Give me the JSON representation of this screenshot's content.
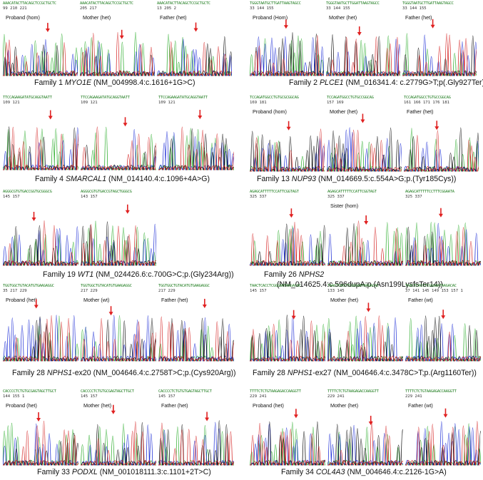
{
  "families": [
    {
      "caption_prefix": "Family 1 ",
      "gene": "MYO1E",
      "caption_suffix": " (NM_004998.4:c.1616+1G>C)",
      "caption_line2": "",
      "panels": [
        {
          "label": "Proband (hom)",
          "seq": "AAACATACTTACAGCTCCGCTGCTC",
          "positions": "99      210       221"
        },
        {
          "label": "Mother (het)",
          "seq": "AAACATACTTACAGCTCCGCTGCTC",
          "positions": "205      217"
        },
        {
          "label": "Father (het)",
          "seq": "AAACATACTTACAGCTCCGCTGCTC",
          "positions": "13       205       2"
        }
      ]
    },
    {
      "caption_prefix": "Family 2 ",
      "gene": "PLCE1",
      "caption_suffix": " (NM_016341.4: c.2779G>T;p(.Gly927Ter))",
      "caption_line2": "",
      "panels": [
        {
          "label": "Proband (Hom)",
          "seq": "TGGGTAATGCTTGATTAAGTAGCC",
          "positions": "33    144       155"
        },
        {
          "label": "Mother (het)",
          "seq": "TGGGTAATGCTTGGATTAAGTAGCC",
          "positions": "33      144       155"
        },
        {
          "label": "Father (het)",
          "seq": "TGGGTAATGCTTGATTAAGTAGCC",
          "positions": "33       144       155"
        }
      ]
    },
    {
      "caption_prefix": "Family 4 ",
      "gene": "SMARCAL1",
      "caption_suffix": " (NM_014140.4:c.1096+4A>G)",
      "caption_line2": "",
      "panels": [
        {
          "label": "",
          "seq": "TTCCAGAAGATATGCAGGTAATT",
          "positions": "109       121"
        },
        {
          "label": "",
          "seq": "TTCCAGAAGATATGCAGGTAATT",
          "positions": "109       121"
        },
        {
          "label": "",
          "seq": "TTCCAGAAGATATGCAGGTAATT",
          "positions": "109       121"
        }
      ]
    },
    {
      "caption_prefix": "Family 13 ",
      "gene": "NUP93",
      "caption_suffix": " (NM_014669.5:c.554A>G;p.(Tyr185Cys))",
      "caption_line2": "",
      "panels": [
        {
          "label": "Proband (hom)",
          "seq": "TCCAGATGGCCTGTGCGCGGCAG",
          "positions": "169         181"
        },
        {
          "label": "Mother (het)",
          "seq": "TCCAGATGGCCTGTGCCGGCAG",
          "positions": "157       169"
        },
        {
          "label": "Father (het)",
          "seq": "TCCAGATGGCCTGTGCCGGCAG",
          "positions": "161  166  171  176  181"
        }
      ]
    },
    {
      "caption_prefix": "Family 19 ",
      "gene": "WT1",
      "caption_suffix": " (NM_024426.6:c.700G>C;p.(Gly234Arg))",
      "caption_line2": "",
      "panels": [
        {
          "label": "",
          "seq": "AGGGCGTGTGACCGGTGCGGGCG",
          "positions": "145       157"
        },
        {
          "label": "",
          "seq": "AGGGCGTGTGACCGTAGCTGGGCG",
          "positions": "143       157"
        }
      ]
    },
    {
      "caption_prefix": "Family 26 ",
      "gene": "NPHS2",
      "caption_suffix": "",
      "caption_line2": "(NM_014625.4:c.596dupA;p.(Asn199LysfsTer14))",
      "panels": [
        {
          "label": "",
          "seq": "AGAGCATTTTTCCATTCGGTAGT",
          "positions": "325       337"
        },
        {
          "label": "Sister (hom)",
          "seq": "AGAGCATTTTTCCATTCGGTAGT",
          "positions": "325       337"
        },
        {
          "label": "",
          "seq": "AGAGCATTTTTCCTTTCGGAATA",
          "positions": "325       337"
        }
      ]
    },
    {
      "caption_prefix": "Family 28 ",
      "gene": "NPHS1",
      "caption_suffix": "-ex20  (NM_004646.4:c.2758T>C;p.(Cys920Arg))",
      "caption_line2": "",
      "panels": [
        {
          "label": "Proband (het)",
          "seq": "TGGTGGCTGTACATGTGAAGAGGC",
          "positions": "35      217       229"
        },
        {
          "label": "Mother (wt)",
          "seq": "TGGTGGCTGTACATGTGAAGAGGC",
          "positions": "217       229"
        },
        {
          "label": "Father (het)",
          "seq": "TGGTGGCTGTACATGTGAAGAGGC",
          "positions": "217       229"
        }
      ]
    },
    {
      "caption_prefix": "Family 28 ",
      "gene": "NPHS1",
      "caption_suffix": "-ex27 (NM_004646.4:c.3478C>T;p.(Arg1160Ter))",
      "caption_line2": "",
      "panels": [
        {
          "label": "",
          "seq": "TAACTCACCTCGGGAATAAGACAC",
          "positions": "145       157"
        },
        {
          "label": "Mother (het)",
          "seq": "TAACTCACCTCGGGAATAAGACAC",
          "positions": "133       145"
        },
        {
          "label": "Father (wt)",
          "seq": "TAACTCACCTCGGGAATAAGACAC",
          "positions": "37 141 145 149 153 157 1"
        }
      ]
    },
    {
      "caption_prefix": "Family 33 ",
      "gene": "PODXL",
      "caption_suffix": " (NM_001018111.3:c.1101+2T>C)",
      "caption_line2": "",
      "panels": [
        {
          "label": "Proband (het)",
          "seq": "CACCCCTCTGTGCGAGTAGCTTGCT",
          "positions": "144       155       1"
        },
        {
          "label": "Mother (het)",
          "seq": "CACCCCTCTGTGCGAGTAGCTTGCT",
          "positions": "145       157"
        },
        {
          "label": "Father (het)",
          "seq": "CACCCCTCTGTGTGAGTAGCTTGCT",
          "positions": "145       157"
        }
      ]
    },
    {
      "caption_prefix": "Family 34 ",
      "gene": "COL4A3",
      "caption_suffix": " (NM_004646.4:c.2126-1G>A)",
      "caption_line2": "",
      "panels": [
        {
          "label": "Proband (het)",
          "seq": "TTTTCTCTGTAAGAGACCAAGGTT",
          "positions": "229       241"
        },
        {
          "label": "Mother (het)",
          "seq": "TTTTCTCTGTAAGAGACCAAGGTT",
          "positions": "229       241"
        },
        {
          "label": "Father (wt)",
          "seq": "TTTTCTCTGTAAGAGACCAAGGTT",
          "positions": "229       241"
        }
      ]
    }
  ]
}
